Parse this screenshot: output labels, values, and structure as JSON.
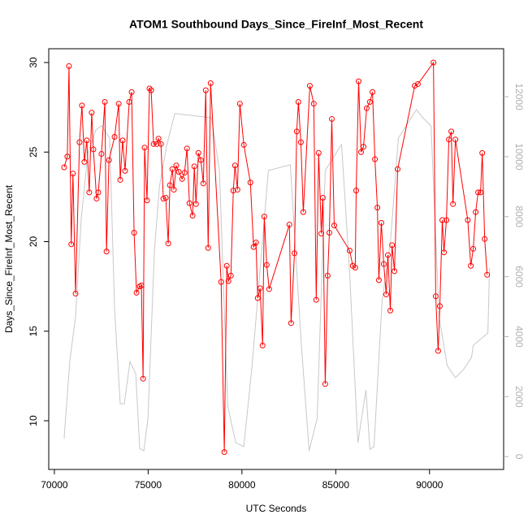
{
  "chart_data": {
    "type": "line",
    "title": "ATOM1 Southbound Days_Since_FireInf_Most_Recent",
    "x_label": "UTC Seconds",
    "y_label": "Days_Since_FireInf_Most_Recent",
    "xlim": [
      69700,
      93950
    ],
    "xticks": [
      70000,
      75000,
      80000,
      85000,
      90000
    ],
    "ylim": [
      7.28,
      30.77
    ],
    "yticks": [
      10,
      15,
      20,
      25,
      30
    ],
    "y2lim": [
      -430,
      13600
    ],
    "y2ticks": [
      0,
      2000,
      4000,
      6000,
      8000,
      10000,
      12000
    ],
    "series": [
      {
        "color": "#ff0000",
        "markers": true,
        "x": [
          70520,
          70690,
          70780,
          70900,
          70990,
          71130,
          71340,
          71470,
          71600,
          71730,
          71860,
          71990,
          72080,
          72250,
          72340,
          72510,
          72690,
          72780,
          72910,
          73210,
          73430,
          73510,
          73640,
          73770,
          73990,
          74120,
          74250,
          74380,
          74550,
          74640,
          74730,
          74810,
          74940,
          75070,
          75160,
          75290,
          75460,
          75550,
          75680,
          75810,
          75940,
          76070,
          76160,
          76290,
          76370,
          76500,
          76630,
          76810,
          76940,
          77070,
          77200,
          77370,
          77460,
          77550,
          77680,
          77810,
          77940,
          78070,
          78200,
          78330,
          78890,
          79060,
          79190,
          79280,
          79410,
          79540,
          79630,
          79760,
          79890,
          80100,
          80450,
          80620,
          80750,
          80840,
          80970,
          81100,
          81190,
          81320,
          81450,
          82530,
          82620,
          82800,
          82920,
          83010,
          83140,
          83270,
          83620,
          83830,
          83960,
          84090,
          84230,
          84310,
          84440,
          84570,
          84660,
          84790,
          84920,
          85740,
          85910,
          86040,
          86090,
          86220,
          86350,
          86480,
          86650,
          86820,
          86960,
          87090,
          87220,
          87300,
          87430,
          87560,
          87690,
          87780,
          87910,
          88000,
          88130,
          88300,
          89210,
          89380,
          90210,
          90330,
          90460,
          90550,
          90680,
          90770,
          90900,
          91030,
          91160,
          91250,
          91380,
          92040,
          92200,
          92330,
          92460,
          92590,
          92720,
          92810,
          92940,
          93070
        ],
        "values": [
          24.15,
          24.75,
          29.8,
          19.85,
          23.8,
          17.1,
          25.55,
          27.6,
          24.45,
          25.65,
          22.75,
          27.2,
          25.15,
          22.4,
          22.75,
          24.9,
          27.8,
          19.45,
          24.55,
          25.85,
          27.7,
          23.45,
          25.65,
          23.95,
          27.8,
          28.35,
          20.5,
          17.15,
          17.5,
          17.55,
          12.35,
          25.25,
          22.3,
          28.55,
          28.45,
          25.45,
          25.45,
          25.75,
          25.45,
          22.4,
          22.45,
          19.9,
          23.15,
          24.05,
          22.9,
          24.25,
          23.9,
          23.5,
          23.85,
          25.2,
          22.15,
          21.45,
          24.2,
          22.1,
          24.95,
          24.55,
          23.25,
          28.45,
          19.65,
          28.85,
          17.75,
          8.25,
          18.65,
          17.8,
          18.1,
          22.85,
          24.25,
          22.9,
          27.7,
          25.4,
          23.3,
          19.7,
          19.95,
          16.85,
          17.4,
          14.2,
          21.4,
          18.7,
          17.35,
          20.95,
          15.45,
          19.35,
          26.15,
          27.8,
          25.55,
          21.65,
          28.7,
          27.7,
          16.75,
          24.95,
          20.45,
          22.45,
          12.05,
          18.1,
          20.5,
          26.85,
          20.9,
          19.5,
          18.65,
          18.55,
          22.85,
          28.95,
          25.0,
          25.3,
          27.45,
          27.8,
          28.35,
          24.6,
          21.9,
          17.85,
          21.05,
          18.75,
          17.05,
          19.25,
          16.15,
          19.8,
          18.35,
          24.05,
          28.7,
          28.8,
          30.0,
          16.95,
          13.9,
          16.4,
          21.2,
          19.4,
          21.2,
          25.7,
          26.15,
          22.1,
          25.7,
          21.2,
          18.65,
          19.6,
          21.65,
          22.75,
          22.75,
          24.95,
          20.15,
          18.15
        ]
      },
      {
        "color": "#c8c8c8",
        "axis": "y2",
        "markers": false,
        "x": [
          70520,
          70820,
          71130,
          71430,
          71780,
          72210,
          72510,
          72950,
          73210,
          73510,
          73730,
          74030,
          74340,
          74550,
          74770,
          74990,
          75330,
          75600,
          75980,
          76420,
          78370,
          78800,
          79240,
          79670,
          80100,
          80540,
          81410,
          82580,
          83140,
          83580,
          84010,
          84440,
          85310,
          85740,
          86180,
          86610,
          86820,
          87040,
          87470,
          87910,
          88340,
          89300,
          89640,
          90080,
          90510,
          90940,
          91380,
          91810,
          92240,
          92330,
          93110,
          93200
        ],
        "values": [
          600,
          3170,
          4660,
          7910,
          10080,
          10890,
          11030,
          10620,
          4930,
          1760,
          1760,
          3170,
          2760,
          270,
          190,
          1270,
          6830,
          9000,
          10350,
          11440,
          11300,
          9540,
          1680,
          460,
          330,
          3040,
          9540,
          9730,
          3980,
          190,
          1270,
          9540,
          10410,
          6150,
          460,
          2220,
          240,
          330,
          5200,
          7100,
          10620,
          11570,
          11300,
          11030,
          4660,
          3040,
          2630,
          2900,
          3310,
          3710,
          4120,
          6290
        ]
      }
    ]
  }
}
